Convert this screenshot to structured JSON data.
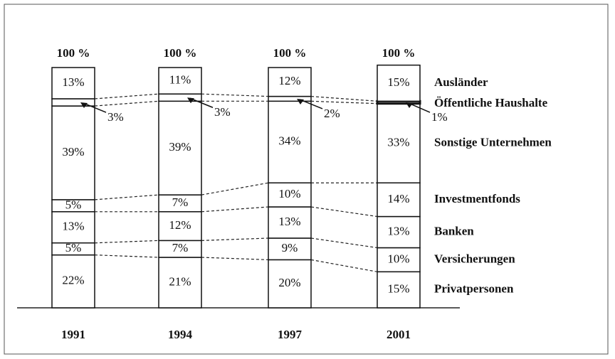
{
  "chart_data": {
    "type": "stacked_bar",
    "categories": [
      "1991",
      "1994",
      "1997",
      "2001"
    ],
    "total_labels": [
      "100 %",
      "100 %",
      "100 %",
      "100 %"
    ],
    "series": [
      {
        "name": "Privatpersonen",
        "color": "#ffffff",
        "values": [
          22,
          21,
          20,
          15
        ],
        "value_labels": [
          "22%",
          "21%",
          "20%",
          "15%"
        ]
      },
      {
        "name": "Versicherungen",
        "color": "#ffffff",
        "values": [
          5,
          7,
          9,
          10
        ],
        "value_labels": [
          "5%",
          "7%",
          "9%",
          "10%"
        ]
      },
      {
        "name": "Banken",
        "color": "#ffffff",
        "values": [
          13,
          12,
          13,
          13
        ],
        "value_labels": [
          "13%",
          "12%",
          "13%",
          "13%"
        ]
      },
      {
        "name": "Investmentfonds",
        "color": "#ffffff",
        "values": [
          5,
          7,
          10,
          14
        ],
        "value_labels": [
          "5%",
          "7%",
          "10%",
          "14%"
        ]
      },
      {
        "name": "Sonstige Unternehmen",
        "color": "#ffffff",
        "values": [
          39,
          39,
          34,
          33
        ],
        "value_labels": [
          "39%",
          "39%",
          "34%",
          "33%"
        ]
      },
      {
        "name": "Öffentliche Haushalte",
        "color": "#ffffff",
        "values": [
          3,
          3,
          2,
          1
        ],
        "value_labels": [
          "3%",
          "3%",
          "2%",
          "1%"
        ]
      },
      {
        "name": "Ausländer",
        "color": "#ffffff",
        "values": [
          13,
          11,
          12,
          15
        ],
        "value_labels": [
          "13%",
          "11%",
          "12%",
          "15%"
        ]
      }
    ]
  }
}
